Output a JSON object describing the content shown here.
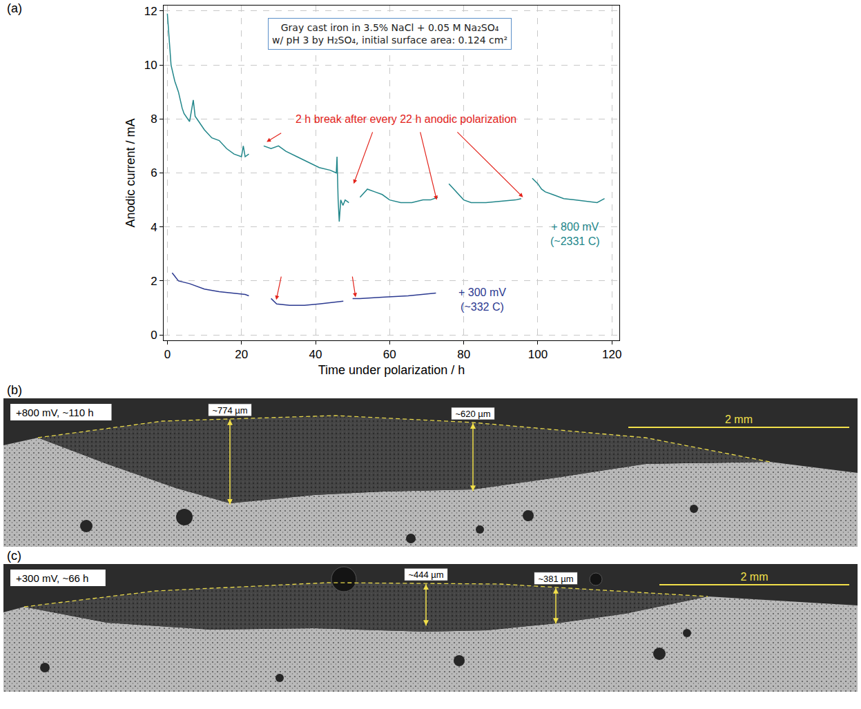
{
  "chart_label": "(a)",
  "chart_data": {
    "type": "line",
    "xlabel": "Time under polarization / h",
    "ylabel": "Anodic current / mA",
    "xlim": [
      -1,
      122
    ],
    "ylim": [
      -0.2,
      12.2
    ],
    "xticks": [
      0,
      20,
      40,
      60,
      80,
      100,
      120
    ],
    "yticks": [
      0,
      2,
      4,
      6,
      8,
      10,
      12
    ],
    "grid": true,
    "info_box": {
      "lines": [
        "Gray cast iron in 3.5% NaCl + 0.05 M Na₂SO₄",
        "w/ pH 3 by H₂SO₄, initial surface area: 0.124 cm²"
      ],
      "x": 60,
      "y": 11.15
    },
    "annotations": [
      {
        "text": "2 h break after every 22 h anodic polarization",
        "x": 64.5,
        "y": 8.0,
        "color": "#e3241c",
        "arrows": [
          {
            "from": [
              31,
              7.5
            ],
            "to": [
              26.8,
              7.15
            ]
          },
          {
            "from": [
              55.5,
              7.55
            ],
            "to": [
              50.3,
              5.6
            ]
          },
          {
            "from": [
              68.2,
              7.55
            ],
            "to": [
              72.7,
              5.0
            ]
          },
          {
            "from": [
              78,
              7.55
            ],
            "to": [
              96,
              5.1
            ]
          },
          {
            "from": [
              30.8,
              2.2
            ],
            "to": [
              29.4,
              1.3
            ]
          },
          {
            "from": [
              49.9,
              2.2
            ],
            "to": [
              50.8,
              1.4
            ]
          }
        ]
      }
    ],
    "series": [
      {
        "color": "#21868a",
        "label": [
          "+ 800 mV",
          "(~2331 C)"
        ],
        "label_x": 110,
        "label_y": 3.75,
        "x": [
          0,
          0.5,
          1,
          2,
          3,
          4,
          4.5,
          5.5,
          6,
          7,
          7.5,
          8,
          10,
          12,
          14,
          16,
          18,
          20,
          20.5,
          21,
          22,
          24,
          26,
          28,
          30,
          32,
          35,
          38,
          41,
          44,
          45.6,
          45.8,
          46.1,
          46.4,
          46.8,
          47.4,
          48,
          49,
          50.5,
          52,
          54,
          56,
          58,
          60,
          63,
          66,
          69,
          71,
          73,
          74.5,
          76,
          78,
          80,
          82,
          86,
          90,
          94,
          95.5,
          97,
          98.5,
          100,
          101,
          102,
          104,
          107,
          110,
          113,
          116,
          118
        ],
        "values": [
          11.9,
          10.8,
          10.0,
          9.4,
          9.0,
          8.4,
          8.2,
          8.0,
          7.9,
          8.7,
          8.1,
          8.0,
          7.6,
          7.3,
          7.2,
          6.9,
          6.7,
          6.6,
          7.0,
          6.6,
          6.7,
          null,
          7.0,
          6.9,
          7.0,
          6.8,
          6.6,
          6.4,
          6.2,
          6.1,
          6.0,
          6.6,
          5.0,
          4.2,
          5.0,
          4.8,
          5.0,
          4.9,
          null,
          5.1,
          5.4,
          5.3,
          5.2,
          5.0,
          4.9,
          4.9,
          5.0,
          5.0,
          5.1,
          null,
          5.6,
          5.3,
          5.0,
          4.9,
          4.9,
          4.95,
          5.0,
          5.05,
          null,
          5.8,
          5.6,
          5.4,
          5.3,
          5.2,
          5.05,
          5.0,
          4.95,
          4.9,
          5.05
        ]
      },
      {
        "color": "#2b3990",
        "label": [
          "+ 300 mV",
          "(~332 C)"
        ],
        "label_x": 85,
        "label_y": 1.3,
        "x": [
          1.3,
          3,
          6,
          10,
          14,
          18,
          21,
          22,
          25,
          28,
          29.5,
          33,
          37,
          41,
          45,
          47.5,
          48.8,
          50,
          52,
          58,
          65,
          72.5
        ],
        "values": [
          2.3,
          2.0,
          1.9,
          1.7,
          1.6,
          1.55,
          1.5,
          1.45,
          null,
          1.35,
          1.15,
          1.1,
          1.1,
          1.15,
          1.2,
          1.25,
          null,
          1.35,
          1.35,
          1.4,
          1.45,
          1.55
        ]
      }
    ]
  },
  "micrographs": [
    {
      "label": "(b)",
      "caption": "+800 mV, ~110 h",
      "depths": [
        {
          "label": "~774 µm",
          "value": 774
        },
        {
          "label": "~620 µm",
          "value": 620
        }
      ],
      "scale_bar": {
        "label": "2 mm",
        "value": 2000
      }
    },
    {
      "label": "(c)",
      "caption": "+300 mV, ~66 h",
      "depths": [
        {
          "label": "~444 µm",
          "value": 444
        },
        {
          "label": "~381 µm",
          "value": 381
        }
      ],
      "scale_bar": {
        "label": "2 mm",
        "value": 2000
      }
    }
  ]
}
